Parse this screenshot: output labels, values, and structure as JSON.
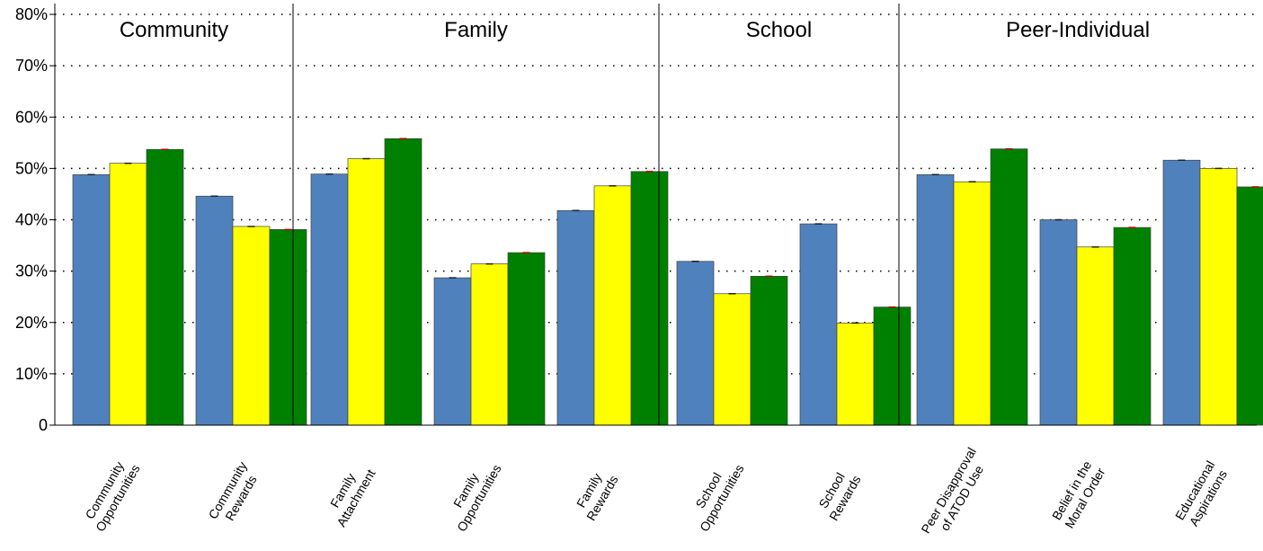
{
  "chart_data": {
    "type": "bar",
    "title": "",
    "xlabel": "",
    "ylabel": "",
    "ylim": [
      0,
      80
    ],
    "y_ticks": [
      "0",
      "10%",
      "20%",
      "30%",
      "40%",
      "50%",
      "60%",
      "70%",
      "80%"
    ],
    "y_tick_values": [
      0,
      10,
      20,
      30,
      40,
      50,
      60,
      70,
      80
    ],
    "grid": "horizontal dotted",
    "groups": [
      {
        "name": "Community",
        "categories": [
          "Community Opportunities",
          "Community Rewards"
        ]
      },
      {
        "name": "Family",
        "categories": [
          "Family Attachment",
          "Family Opportunities",
          "Family Rewards"
        ]
      },
      {
        "name": "School",
        "categories": [
          "School Opportunities",
          "School Rewards"
        ]
      },
      {
        "name": "Peer-Individual",
        "categories": [
          "Peer Disapproval of ATOD Use",
          "Belief in the Moral Order",
          "Educational Aspirations"
        ]
      }
    ],
    "categories": [
      "Community Opportunities",
      "Community Rewards",
      "Family Attachment",
      "Family Opportunities",
      "Family Rewards",
      "School Opportunities",
      "School Rewards",
      "Peer Disapproval of ATOD Use",
      "Belief in the Moral Order",
      "Educational Aspirations"
    ],
    "category_label_lines": [
      [
        "Community",
        "Opportunities"
      ],
      [
        "Community",
        "Rewards"
      ],
      [
        "Family",
        "Attachment"
      ],
      [
        "Family",
        "Opportunities"
      ],
      [
        "Family",
        "Rewards"
      ],
      [
        "School",
        "Opportunities"
      ],
      [
        "School",
        "Rewards"
      ],
      [
        "Peer Disapproval",
        "of ATOD Use"
      ],
      [
        "Belief in the",
        "Moral Order"
      ],
      [
        "Educational",
        "Aspirations"
      ]
    ],
    "series": [
      {
        "color": "#4f81bd",
        "values": [
          48.8,
          44.6,
          48.9,
          28.7,
          41.8,
          31.9,
          39.2,
          48.8,
          40.0,
          51.6
        ]
      },
      {
        "color": "#ffff00",
        "values": [
          51.0,
          38.7,
          51.9,
          31.4,
          46.6,
          25.6,
          19.9,
          47.4,
          34.7,
          50.0
        ]
      },
      {
        "color": "#008000",
        "values": [
          53.7,
          38.1,
          55.8,
          33.6,
          49.4,
          29.0,
          23.0,
          53.8,
          38.5,
          46.4
        ]
      }
    ]
  }
}
